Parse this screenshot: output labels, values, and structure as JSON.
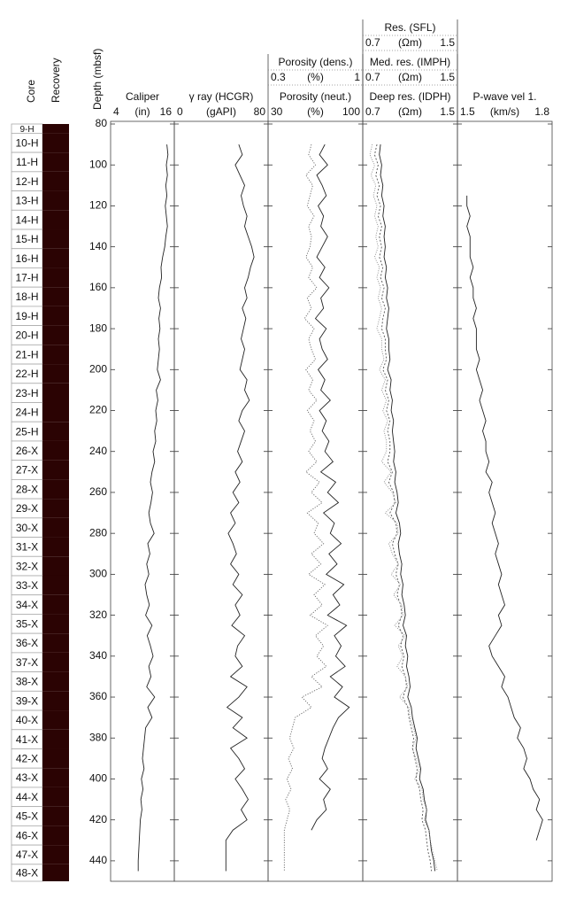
{
  "chart_data": {
    "type": "well_log",
    "ylabel": "Depth (mbsf)",
    "ylim": [
      80,
      450
    ],
    "yticks": [
      80,
      100,
      120,
      140,
      160,
      180,
      200,
      220,
      240,
      260,
      280,
      300,
      320,
      340,
      360,
      380,
      400,
      420,
      440
    ],
    "core_header": "Core",
    "recovery_header": "Recovery",
    "cores": {
      "names": [
        "9-H",
        "10-H",
        "11-H",
        "12-H",
        "13-H",
        "14-H",
        "15-H",
        "16-H",
        "17-H",
        "18-H",
        "19-H",
        "20-H",
        "21-H",
        "22-H",
        "23-H",
        "24-H",
        "25-H",
        "26-X",
        "27-X",
        "28-X",
        "29-X",
        "30-X",
        "31-X",
        "32-X",
        "33-X",
        "34-X",
        "35-X",
        "36-X",
        "37-X",
        "38-X",
        "39-X",
        "40-X",
        "41-X",
        "42-X",
        "43-X",
        "44-X",
        "45-X",
        "46-X",
        "47-X",
        "48-X"
      ],
      "tops": [
        80,
        84.5,
        93.9,
        103.3,
        112.7,
        122.1,
        131.5,
        140.9,
        150.3,
        159.7,
        169.1,
        178.5,
        187.9,
        197.3,
        206.7,
        216.1,
        225.5,
        234.9,
        244.3,
        253.7,
        263.1,
        272.5,
        281.9,
        291.3,
        300.7,
        310.1,
        319.5,
        328.9,
        338.3,
        347.7,
        357.1,
        366.5,
        375.9,
        385.3,
        394.7,
        404.1,
        413.5,
        422.9,
        432.3,
        441.7
      ]
    },
    "depth": [
      90,
      95,
      100,
      105,
      110,
      115,
      120,
      125,
      130,
      135,
      140,
      145,
      150,
      155,
      160,
      165,
      170,
      175,
      180,
      185,
      190,
      195,
      200,
      205,
      210,
      215,
      220,
      225,
      230,
      235,
      240,
      245,
      250,
      255,
      260,
      265,
      270,
      275,
      280,
      285,
      290,
      295,
      300,
      305,
      310,
      315,
      320,
      325,
      330,
      335,
      340,
      345,
      350,
      355,
      360,
      365,
      370,
      375,
      380,
      385,
      390,
      395,
      400,
      405,
      410,
      415,
      420,
      425,
      430,
      435,
      440,
      445
    ],
    "tracks": [
      {
        "series": [
          {
            "name": "Caliper",
            "unit": "(in)",
            "xlim": [
              4,
              16
            ],
            "color": "#222222",
            "dash": "none",
            "values": [
              14.6,
              14.8,
              14.5,
              14.7,
              14.4,
              14.6,
              14.3,
              14.5,
              14.7,
              14.4,
              14.2,
              13.8,
              13.5,
              13.6,
              13.2,
              13.0,
              13.4,
              13.1,
              13.3,
              13.0,
              13.2,
              13.0,
              12.8,
              13.4,
              12.6,
              12.9,
              12.5,
              12.7,
              12.3,
              12.5,
              12.0,
              12.3,
              11.8,
              11.5,
              11.9,
              11.6,
              11.2,
              11.5,
              12.2,
              11.0,
              11.4,
              10.8,
              11.2,
              10.5,
              10.8,
              11.3,
              10.6,
              11.8,
              10.9,
              11.5,
              12.0,
              11.2,
              11.6,
              10.8,
              12.3,
              11.0,
              11.8,
              10.6,
              10.4,
              10.2,
              10.0,
              10.3,
              9.8,
              10.1,
              9.7,
              9.9,
              9.6,
              9.5,
              9.4,
              9.3,
              9.2,
              9.2
            ]
          }
        ]
      },
      {
        "series": [
          {
            "name": "γ ray (HCGR)",
            "unit": "(gAPI)",
            "xlim": [
              0,
              80
            ],
            "color": "#222222",
            "dash": "none",
            "values": [
              55,
              58,
              52,
              56,
              60,
              57,
              59,
              62,
              60,
              63,
              66,
              68,
              65,
              63,
              60,
              62,
              58,
              61,
              59,
              57,
              60,
              58,
              56,
              62,
              60,
              64,
              58,
              55,
              60,
              57,
              54,
              58,
              52,
              56,
              50,
              55,
              48,
              52,
              46,
              50,
              53,
              48,
              55,
              50,
              58,
              52,
              56,
              49,
              60,
              54,
              52,
              58,
              48,
              62,
              55,
              45,
              58,
              50,
              62,
              48,
              55,
              60,
              52,
              58,
              63,
              57,
              62,
              50,
              44,
              44,
              44,
              44
            ]
          }
        ]
      },
      {
        "series": [
          {
            "name": "Porosity (neut.)",
            "unit": "(%)",
            "xlim": [
              30,
              100
            ],
            "color": "#222222",
            "dash": "none",
            "values": [
              72,
              68,
              74,
              66,
              70,
              73,
              67,
              71,
              69,
              74,
              70,
              66,
              72,
              68,
              75,
              69,
              71,
              65,
              73,
              68,
              70,
              74,
              67,
              72,
              69,
              76,
              68,
              73,
              70,
              75,
              72,
              78,
              69,
              80,
              74,
              82,
              71,
              79,
              76,
              84,
              75,
              81,
              73,
              86,
              78,
              83,
              74,
              88,
              79,
              84,
              80,
              87,
              76,
              85,
              79,
              90,
              82,
              78,
              75,
              72,
              70,
              74,
              68,
              76,
              71,
              73,
              66,
              62,
              null,
              null,
              null,
              null
            ]
          },
          {
            "name": "Porosity (dens.)",
            "unit": "(%)",
            "xlim": [
              0.3,
              1
            ],
            "color": "#666666",
            "dash": "1.2 1.6",
            "values": [
              0.62,
              0.6,
              0.65,
              0.58,
              0.63,
              0.61,
              0.59,
              0.64,
              0.6,
              0.62,
              0.61,
              0.58,
              0.63,
              0.6,
              0.66,
              0.59,
              0.62,
              0.57,
              0.64,
              0.6,
              0.62,
              0.65,
              0.58,
              0.63,
              0.6,
              0.66,
              0.59,
              0.64,
              0.61,
              0.65,
              0.6,
              0.66,
              0.58,
              0.68,
              0.62,
              0.7,
              0.59,
              0.67,
              0.64,
              0.71,
              0.62,
              0.69,
              0.6,
              0.72,
              0.64,
              0.7,
              0.61,
              0.74,
              0.65,
              0.71,
              0.66,
              0.73,
              0.62,
              0.7,
              0.55,
              0.62,
              0.5,
              0.48,
              0.46,
              0.49,
              0.45,
              0.48,
              0.44,
              0.47,
              0.43,
              0.46,
              0.44,
              0.42,
              0.42,
              0.42,
              0.42,
              0.42
            ]
          }
        ]
      },
      {
        "series": [
          {
            "name": "Deep res. (IDPH)",
            "unit": "(Ωm)",
            "xlim": [
              0.7,
              1.5
            ],
            "color": "#222222",
            "dash": "none",
            "values": [
              0.85,
              0.84,
              0.86,
              0.85,
              0.87,
              0.86,
              0.88,
              0.87,
              0.89,
              0.88,
              0.89,
              0.88,
              0.9,
              0.89,
              0.91,
              0.9,
              0.92,
              0.91,
              0.9,
              0.92,
              0.92,
              0.93,
              0.91,
              0.94,
              0.93,
              0.95,
              0.94,
              0.96,
              0.95,
              0.96,
              0.97,
              0.96,
              0.98,
              0.97,
              0.99,
              1.0,
              0.98,
              1.01,
              1.02,
              1.0,
              1.01,
              1.03,
              1.02,
              1.04,
              1.03,
              1.05,
              1.06,
              1.04,
              1.07,
              1.06,
              1.08,
              1.07,
              1.09,
              1.1,
              1.08,
              1.11,
              1.12,
              1.14,
              1.16,
              1.15,
              1.17,
              1.19,
              1.18,
              1.21,
              1.22,
              1.24,
              1.23,
              1.26,
              1.27,
              1.28,
              1.3,
              1.31
            ]
          },
          {
            "name": "Med. res. (IMPH)",
            "unit": "(Ωm)",
            "xlim": [
              0.7,
              1.5
            ],
            "color": "#555555",
            "dash": "2 2",
            "values": [
              0.82,
              0.8,
              0.83,
              0.81,
              0.84,
              0.82,
              0.85,
              0.83,
              0.86,
              0.84,
              0.86,
              0.84,
              0.87,
              0.85,
              0.88,
              0.86,
              0.89,
              0.87,
              0.86,
              0.89,
              0.89,
              0.9,
              0.87,
              0.91,
              0.89,
              0.92,
              0.9,
              0.93,
              0.91,
              0.93,
              0.93,
              0.91,
              0.95,
              0.92,
              0.96,
              0.97,
              0.93,
              0.98,
              0.99,
              0.95,
              0.97,
              1.0,
              0.98,
              1.01,
              0.99,
              1.02,
              1.03,
              1.0,
              1.04,
              1.02,
              1.05,
              1.03,
              1.06,
              1.07,
              1.04,
              1.08,
              1.09,
              1.11,
              1.13,
              1.12,
              1.14,
              1.16,
              1.15,
              1.18,
              1.19,
              1.21,
              1.2,
              1.23,
              1.24,
              1.25,
              1.27,
              1.28
            ]
          },
          {
            "name": "Res. (SFL)",
            "unit": "(Ωm)",
            "xlim": [
              0.7,
              1.5
            ],
            "color": "#888888",
            "dash": "1 1.5",
            "values": [
              0.78,
              0.76,
              0.8,
              0.77,
              0.81,
              0.79,
              0.82,
              0.8,
              0.83,
              0.81,
              0.83,
              0.8,
              0.84,
              0.82,
              0.85,
              0.83,
              0.86,
              0.84,
              0.82,
              0.86,
              0.86,
              0.88,
              0.84,
              0.89,
              0.86,
              0.9,
              0.87,
              0.91,
              0.88,
              0.9,
              0.9,
              0.86,
              0.94,
              0.88,
              0.95,
              0.98,
              0.89,
              0.99,
              1.0,
              0.92,
              0.95,
              1.0,
              0.94,
              1.02,
              0.96,
              1.03,
              1.04,
              0.97,
              1.06,
              1.0,
              1.04,
              0.99,
              1.06,
              1.08,
              1.01,
              1.09,
              1.1,
              1.13,
              1.15,
              1.12,
              1.15,
              1.18,
              1.14,
              1.2,
              1.21,
              1.24,
              1.22,
              1.26,
              1.27,
              1.29,
              1.31,
              1.33
            ]
          }
        ]
      },
      {
        "series": [
          {
            "name": "P-wave vel 1.",
            "unit": "(km/s)",
            "xlim": [
              1.5,
              1.8
            ],
            "color": "#222222",
            "dash": "none",
            "values": [
              null,
              null,
              null,
              null,
              null,
              1.53,
              1.53,
              1.54,
              1.53,
              1.54,
              1.54,
              1.54,
              1.55,
              1.54,
              1.55,
              1.55,
              1.56,
              1.55,
              1.56,
              1.56,
              1.56,
              1.57,
              1.56,
              1.57,
              1.58,
              1.57,
              1.58,
              1.59,
              1.58,
              1.59,
              1.59,
              1.6,
              1.59,
              1.61,
              1.6,
              1.61,
              1.62,
              1.61,
              1.62,
              1.63,
              1.62,
              1.63,
              1.64,
              1.63,
              1.64,
              1.65,
              1.63,
              1.64,
              1.62,
              1.6,
              1.61,
              1.63,
              1.65,
              1.64,
              1.66,
              1.67,
              1.68,
              1.7,
              1.69,
              1.71,
              1.72,
              1.71,
              1.73,
              1.74,
              1.76,
              1.75,
              1.77,
              1.76,
              1.75,
              null,
              null,
              null
            ]
          }
        ]
      }
    ]
  }
}
